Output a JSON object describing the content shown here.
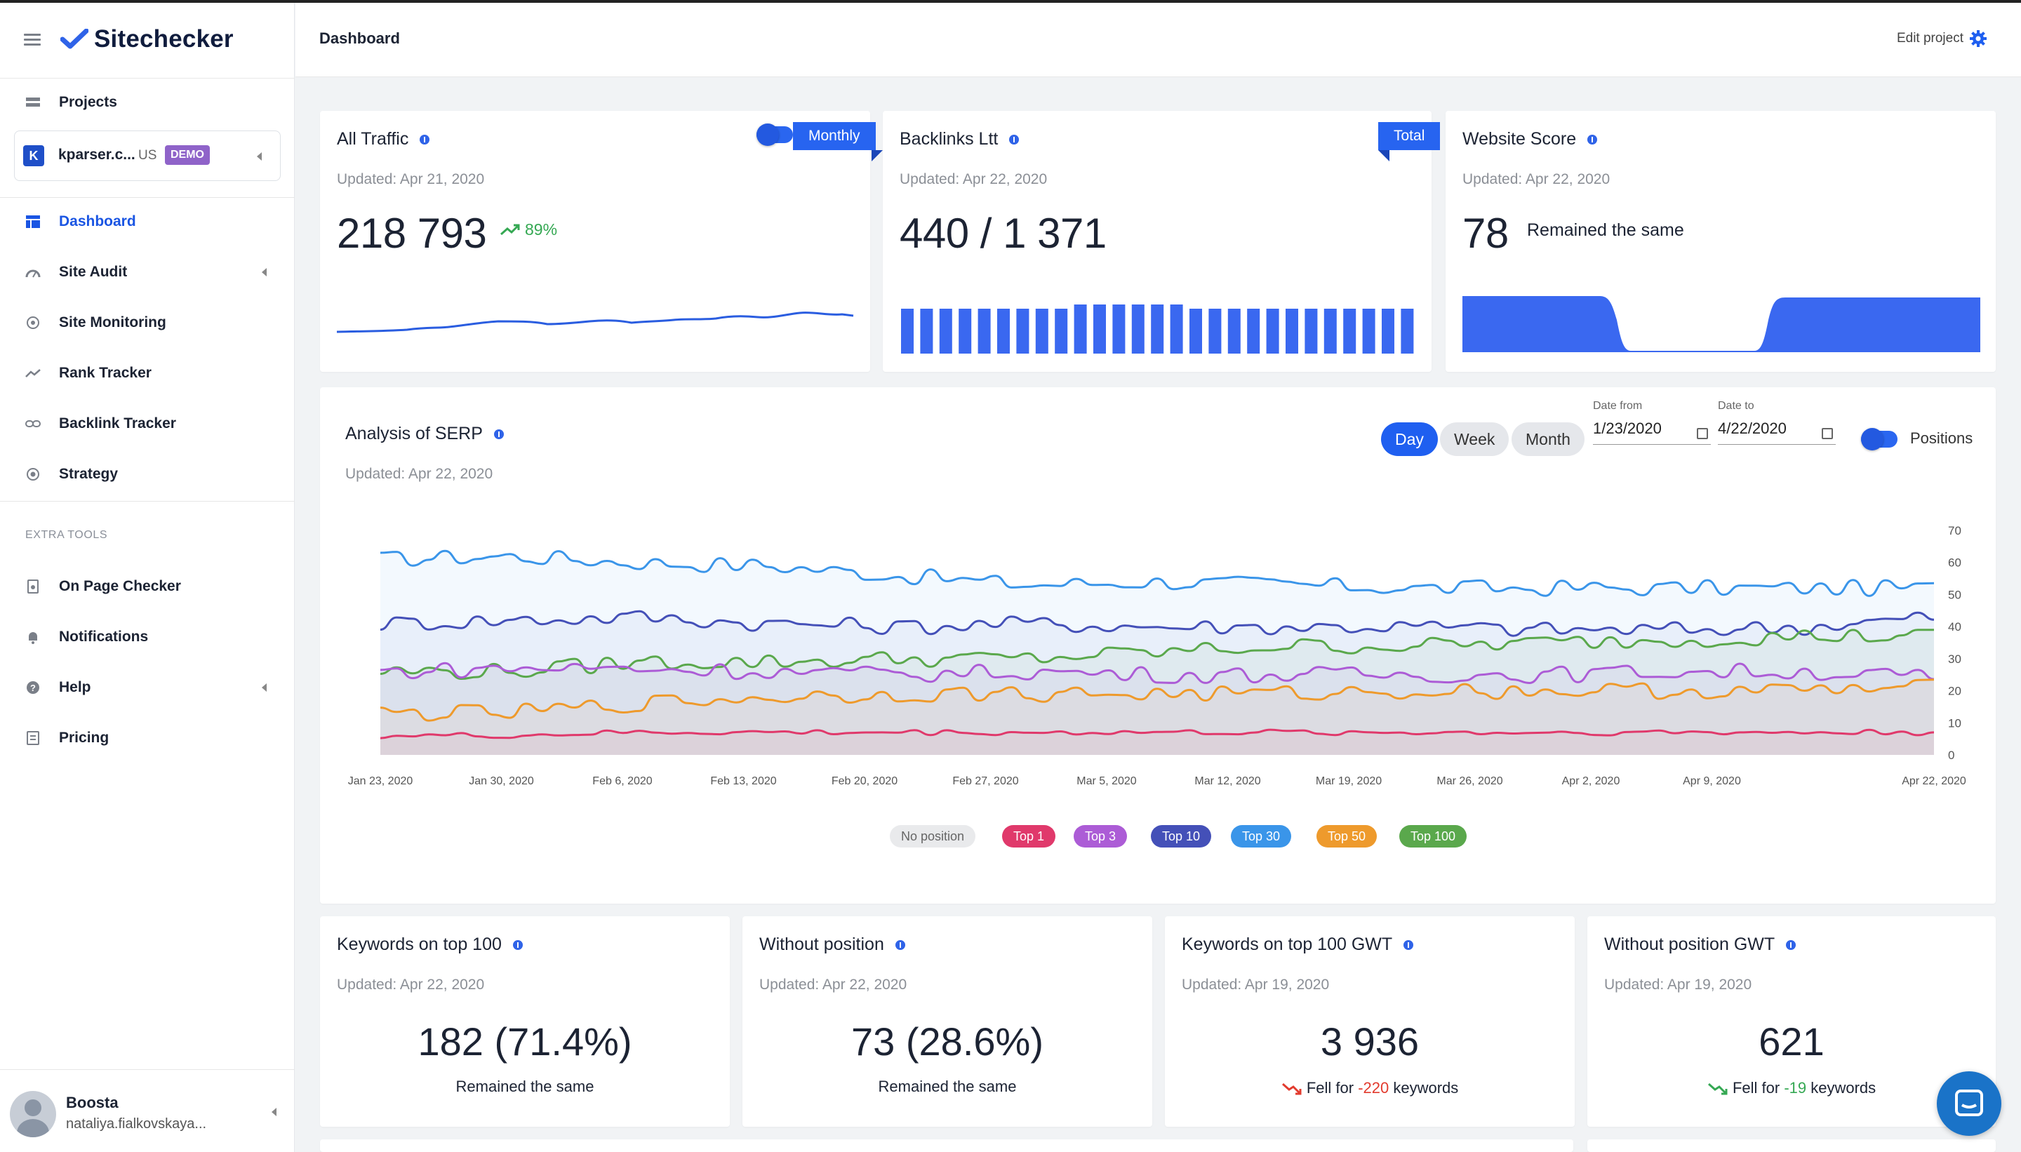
{
  "brand": {
    "name": "Sitechecker",
    "accent": "#2f63e8"
  },
  "header": {
    "title": "Dashboard",
    "edit_project": "Edit project"
  },
  "sidebar": {
    "projects_label": "Projects",
    "project": {
      "initial": "K",
      "name": "kparser.c...",
      "country": "US",
      "badge": "DEMO"
    },
    "items": [
      {
        "label": "Dashboard",
        "icon": "dashboard-icon"
      },
      {
        "label": "Site Audit",
        "icon": "audit-icon"
      },
      {
        "label": "Site Monitoring",
        "icon": "monitoring-icon"
      },
      {
        "label": "Rank Tracker",
        "icon": "rank-icon"
      },
      {
        "label": "Backlink Tracker",
        "icon": "link-icon"
      },
      {
        "label": "Strategy",
        "icon": "strategy-icon"
      }
    ],
    "extra_tools_label": "EXTRA TOOLS",
    "extra_items": [
      {
        "label": "On Page Checker"
      },
      {
        "label": "Notifications"
      },
      {
        "label": "Help"
      },
      {
        "label": "Pricing"
      }
    ],
    "user": {
      "name": "Boosta",
      "email": "nataliya.fialkovskaya..."
    }
  },
  "traffic": {
    "title": "All Traffic",
    "toggle_label": "Monthly",
    "updated": "Updated: Apr 21, 2020",
    "value": "218 793",
    "growth": "89%"
  },
  "backlinks": {
    "title": "Backlinks Ltt",
    "ribbon": "Total",
    "updated": "Updated: Apr 22, 2020",
    "value": "440 / 1 371"
  },
  "score": {
    "title": "Website Score",
    "updated": "Updated: Apr 22, 2020",
    "value": "78",
    "status": "Remained the same"
  },
  "serp": {
    "title": "Analysis of SERP",
    "updated": "Updated: Apr 22, 2020",
    "ranges": [
      "Day",
      "Week",
      "Month"
    ],
    "active_range": "Day",
    "date_from_label": "Date from",
    "date_from": "1/23/2020",
    "date_to_label": "Date to",
    "date_to": "4/22/2020",
    "positions_label": "Positions",
    "legend": [
      {
        "label": "No position",
        "color": "#e9eaec",
        "text": "#666"
      },
      {
        "label": "Top 1",
        "color": "#e0396b",
        "text": "#fff"
      },
      {
        "label": "Top 3",
        "color": "#ac5cd6",
        "text": "#fff"
      },
      {
        "label": "Top 10",
        "color": "#4450b8",
        "text": "#fff"
      },
      {
        "label": "Top 30",
        "color": "#3a95e9",
        "text": "#fff"
      },
      {
        "label": "Top 50",
        "color": "#ee9a2c",
        "text": "#fff"
      },
      {
        "label": "Top 100",
        "color": "#5aa84c",
        "text": "#fff"
      }
    ]
  },
  "chart_data": {
    "type": "line",
    "x_ticks": [
      "Jan 23, 2020",
      "Jan 30, 2020",
      "Feb 6, 2020",
      "Feb 13, 2020",
      "Feb 20, 2020",
      "Feb 27, 2020",
      "Mar 5, 2020",
      "Mar 12, 2020",
      "Mar 19, 2020",
      "Mar 26, 2020",
      "Apr 2, 2020",
      "Apr 9, 2020",
      "Apr 22, 2020"
    ],
    "y_ticks": [
      0,
      10,
      20,
      30,
      40,
      50,
      60,
      70
    ],
    "ylim": [
      0,
      70
    ],
    "grid": false,
    "series": [
      {
        "name": "Top 30",
        "color": "#3a95e9",
        "values": [
          61,
          62,
          60,
          59,
          56,
          53,
          54,
          53,
          52,
          52,
          52,
          52,
          52
        ]
      },
      {
        "name": "Top 10",
        "color": "#4450b8",
        "values": [
          41,
          42,
          43,
          41,
          40,
          41,
          40,
          40,
          40,
          39,
          39,
          40,
          43
        ]
      },
      {
        "name": "Top 100",
        "color": "#5aa84c",
        "values": [
          26,
          26,
          29,
          29,
          30,
          30,
          32,
          34,
          34,
          35,
          36,
          37,
          37
        ]
      },
      {
        "name": "Top 3",
        "color": "#ac5cd6",
        "values": [
          26,
          27,
          27,
          26,
          25,
          26,
          25,
          25,
          25,
          25,
          26,
          26,
          24
        ]
      },
      {
        "name": "Top 50",
        "color": "#ee9a2c",
        "values": [
          13,
          13,
          16,
          18,
          19,
          19,
          19,
          19,
          20,
          20,
          20,
          20,
          21
        ]
      },
      {
        "name": "Top 1",
        "color": "#e0396b",
        "values": [
          6,
          6,
          7,
          7,
          7,
          7,
          7,
          7,
          7,
          7,
          7,
          7,
          7
        ]
      }
    ]
  },
  "bottom": [
    {
      "title": "Keywords on top 100",
      "updated": "Updated: Apr 22, 2020",
      "value": "182 (71.4%)",
      "sub": "Remained the same"
    },
    {
      "title": "Without position",
      "updated": "Updated: Apr 22, 2020",
      "value": "73 (28.6%)",
      "sub": "Remained the same"
    },
    {
      "title": "Keywords on top 100 GWT",
      "updated": "Updated: Apr 19, 2020",
      "value": "3 936",
      "sub_prefix": "Fell for",
      "sub_delta": "-220",
      "sub_suffix": "keywords"
    },
    {
      "title": "Without position GWT",
      "updated": "Updated: Apr 19, 2020",
      "value": "621",
      "sub_prefix": "Fell for",
      "sub_delta": "-19",
      "sub_suffix": "keywords"
    }
  ]
}
